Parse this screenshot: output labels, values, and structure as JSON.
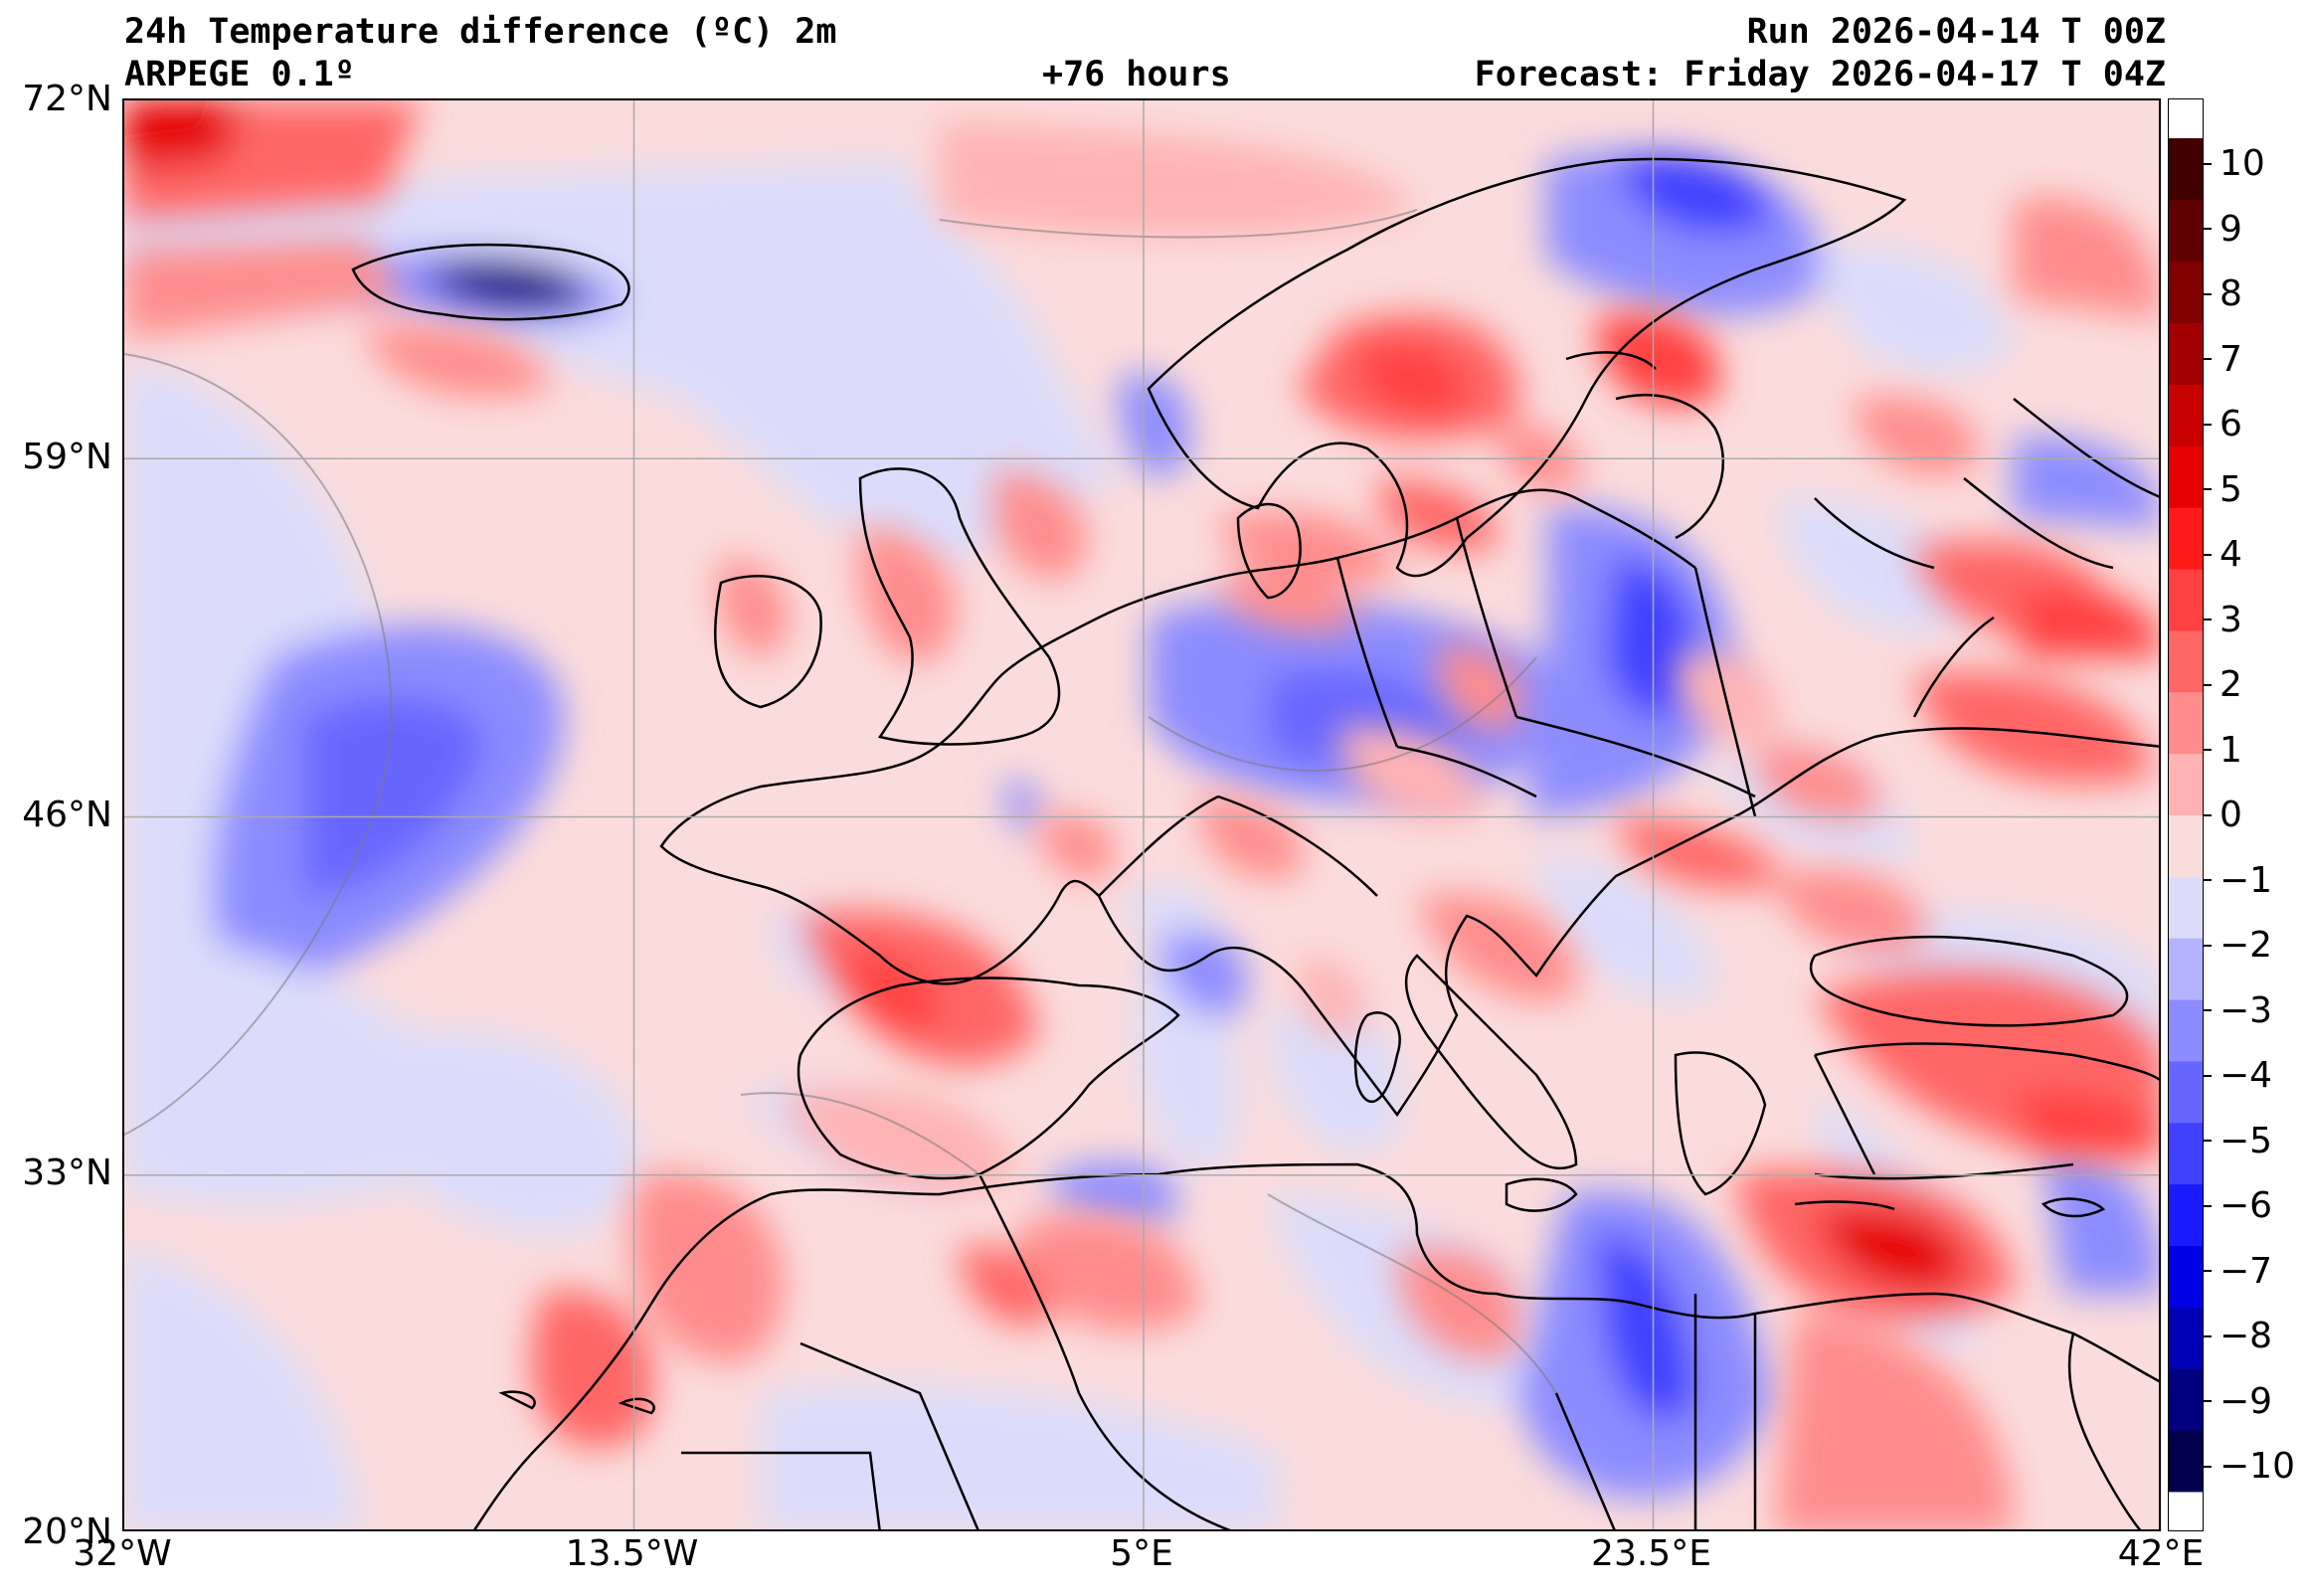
{
  "header": {
    "title": "24h Temperature difference (ºC) 2m",
    "model": "ARPEGE 0.1º",
    "lead_time": "+76 hours",
    "run": "Run 2026-04-14 T 00Z",
    "forecast": "Forecast: Friday 2026-04-17 T 04Z"
  },
  "map": {
    "lon_range": [
      -32,
      42
    ],
    "lat_range": [
      20,
      72
    ],
    "x_ticks": [
      {
        "value": -32,
        "label": "32°W"
      },
      {
        "value": -13.5,
        "label": "13.5°W"
      },
      {
        "value": 5,
        "label": "5°E"
      },
      {
        "value": 23.5,
        "label": "23.5°E"
      },
      {
        "value": 42,
        "label": "42°E"
      }
    ],
    "y_ticks": [
      {
        "value": 72,
        "label": "72°N"
      },
      {
        "value": 59,
        "label": "59°N"
      },
      {
        "value": 46,
        "label": "46°N"
      },
      {
        "value": 33,
        "label": "33°N"
      },
      {
        "value": 20,
        "label": "20°N"
      }
    ],
    "grid": true
  },
  "colorbar": {
    "min": -11,
    "max": 11,
    "ticks": [
      {
        "value": 10,
        "label": "10"
      },
      {
        "value": 9,
        "label": "9"
      },
      {
        "value": 8,
        "label": "8"
      },
      {
        "value": 7,
        "label": "7"
      },
      {
        "value": 6,
        "label": "6"
      },
      {
        "value": 5,
        "label": "5"
      },
      {
        "value": 4,
        "label": "4"
      },
      {
        "value": 3,
        "label": "3"
      },
      {
        "value": 2,
        "label": "2"
      },
      {
        "value": 1,
        "label": "1"
      },
      {
        "value": 0,
        "label": "0"
      },
      {
        "value": -1,
        "label": "−1"
      },
      {
        "value": -2,
        "label": "−2"
      },
      {
        "value": -3,
        "label": "−3"
      },
      {
        "value": -4,
        "label": "−4"
      },
      {
        "value": -5,
        "label": "−5"
      },
      {
        "value": -6,
        "label": "−6"
      },
      {
        "value": -7,
        "label": "−7"
      },
      {
        "value": -8,
        "label": "−8"
      },
      {
        "value": -9,
        "label": "−9"
      },
      {
        "value": -10,
        "label": "−10"
      }
    ],
    "colors": [
      "#00004c",
      "#000080",
      "#0000b4",
      "#0000e6",
      "#1a1aff",
      "#4040ff",
      "#6666ff",
      "#8c8cff",
      "#b3b3ff",
      "#dcdcfa",
      "#fbdcdc",
      "#ffb3b3",
      "#ff8c8c",
      "#ff6666",
      "#ff4040",
      "#ff1a1a",
      "#e60000",
      "#c80000",
      "#a00000",
      "#800000",
      "#600000",
      "#400000"
    ]
  }
}
